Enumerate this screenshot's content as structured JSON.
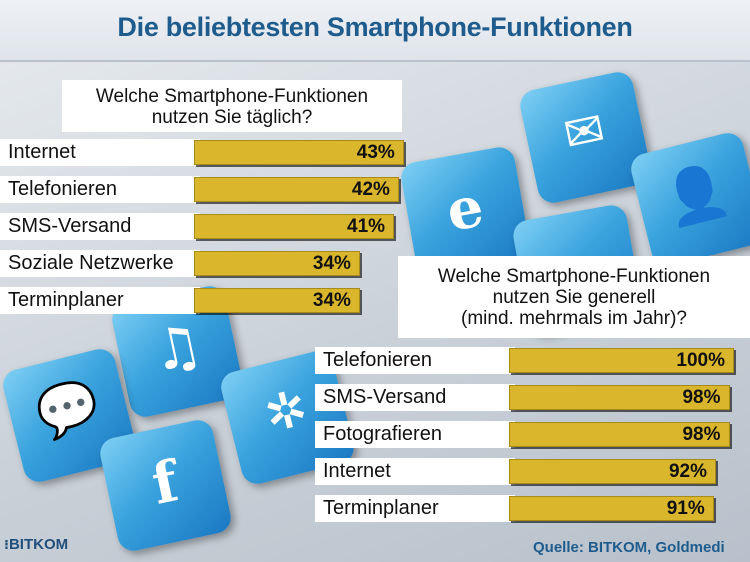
{
  "title": "Die beliebtesten Smartphone-Funktionen",
  "chart_data": [
    {
      "type": "bar",
      "orientation": "horizontal",
      "title": "Welche Smartphone-Funktionen nutzen Sie täglich?",
      "title_lines": [
        "Welche Smartphone-Funktionen",
        "nutzen Sie täglich?"
      ],
      "categories": [
        "Internet",
        "Telefonieren",
        "SMS-Versand",
        "Soziale Netzwerke",
        "Terminplaner"
      ],
      "values": [
        43,
        42,
        41,
        34,
        34
      ],
      "value_labels": [
        "43%",
        "42%",
        "41%",
        "34%",
        "34%"
      ],
      "unit": "%",
      "xlim": [
        0,
        100
      ]
    },
    {
      "type": "bar",
      "orientation": "horizontal",
      "title": "Welche Smartphone-Funktionen nutzen Sie generell (mind. mehrmals im Jahr)?",
      "title_lines": [
        "Welche Smartphone-Funktionen",
        "nutzen Sie generell",
        "(mind. mehrmals im Jahr)?"
      ],
      "categories": [
        "Telefonieren",
        "SMS-Versand",
        "Fotografieren",
        "Internet",
        "Terminplaner"
      ],
      "values": [
        100,
        98,
        98,
        92,
        91
      ],
      "value_labels": [
        "100%",
        "98%",
        "98%",
        "92%",
        "91%"
      ],
      "unit": "%",
      "xlim": [
        0,
        100
      ]
    }
  ],
  "logo_text": "BITKOM",
  "source": "Quelle: BITKOM, Goldmedi",
  "colors": {
    "bar": "#d9b62c",
    "title": "#1f5c8e",
    "tile": "#3aa3de"
  },
  "icons": [
    "mail-icon",
    "internet-explorer-icon",
    "contact-icon",
    "music-note-icon",
    "speech-bubble-icon",
    "facebook-icon",
    "compass-icon"
  ]
}
